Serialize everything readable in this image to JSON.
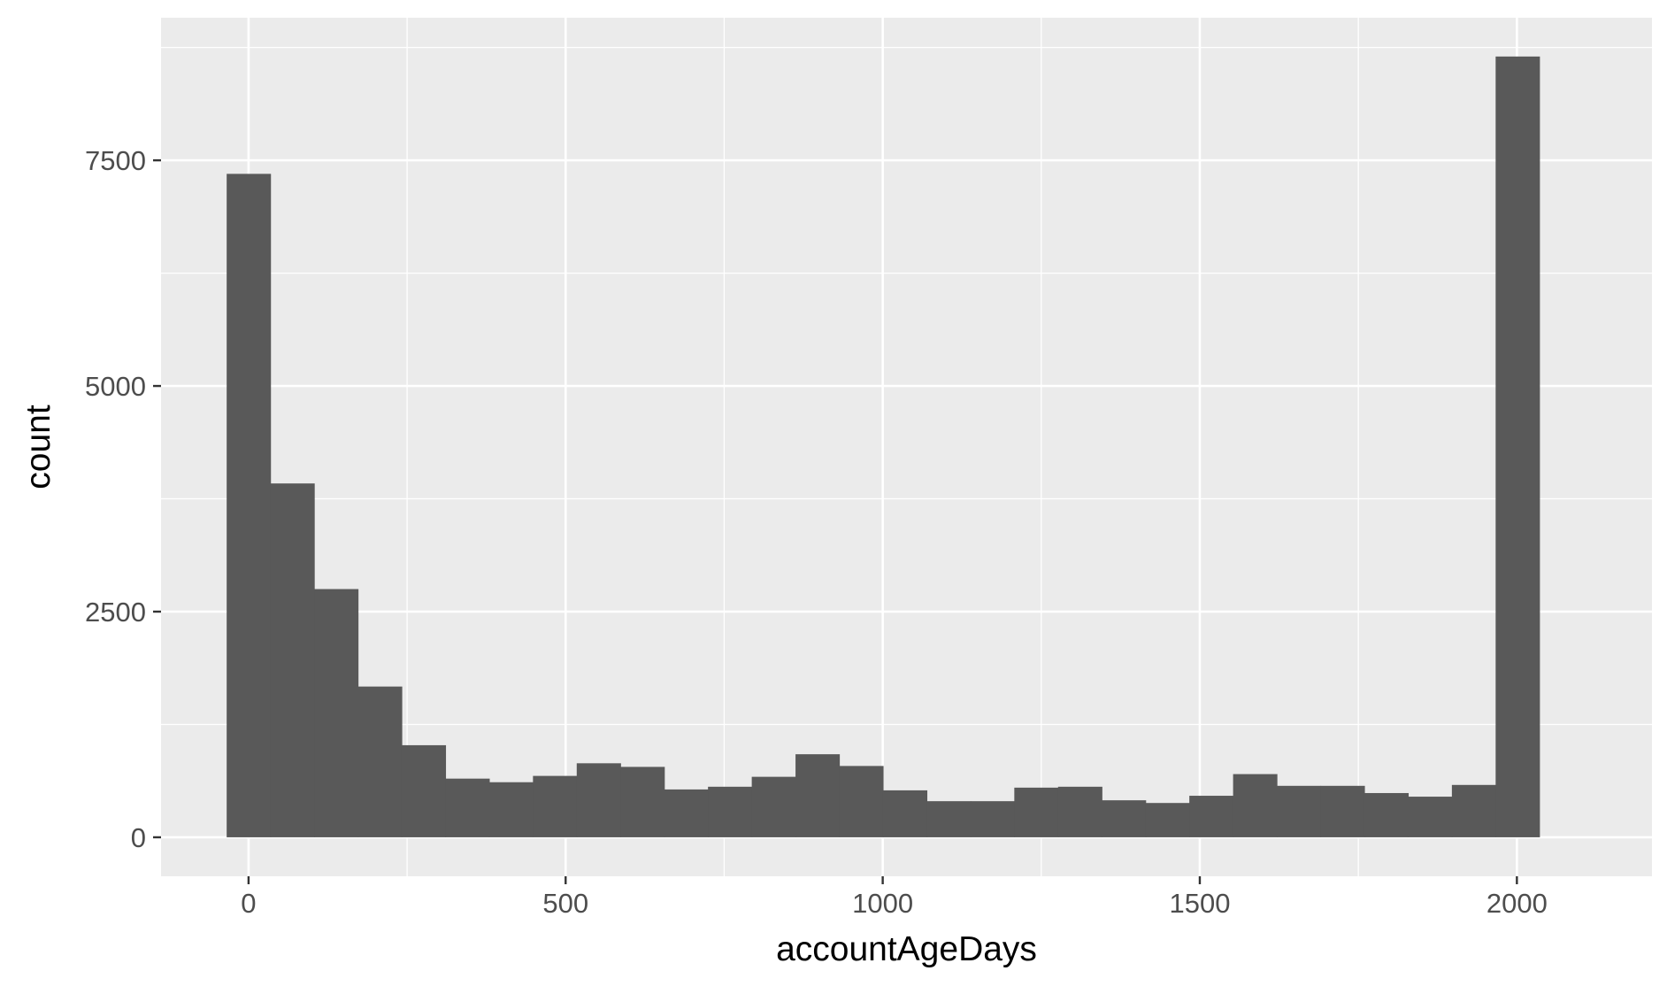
{
  "chart_data": {
    "type": "bar",
    "title": "",
    "xlabel": "accountAgeDays",
    "ylabel": "count",
    "bin_width": 69,
    "bins": [
      {
        "x_start": -34.5,
        "x_end": 34.5,
        "count": 7350
      },
      {
        "x_start": 34.5,
        "x_end": 103.5,
        "count": 3920
      },
      {
        "x_start": 103.5,
        "x_end": 172.5,
        "count": 2750
      },
      {
        "x_start": 172.5,
        "x_end": 241.5,
        "count": 1670
      },
      {
        "x_start": 241.5,
        "x_end": 310.5,
        "count": 1020
      },
      {
        "x_start": 310.5,
        "x_end": 379.5,
        "count": 650
      },
      {
        "x_start": 379.5,
        "x_end": 448.5,
        "count": 610
      },
      {
        "x_start": 448.5,
        "x_end": 517.5,
        "count": 680
      },
      {
        "x_start": 517.5,
        "x_end": 586.5,
        "count": 820
      },
      {
        "x_start": 586.5,
        "x_end": 655.5,
        "count": 780
      },
      {
        "x_start": 655.5,
        "x_end": 724.5,
        "count": 530
      },
      {
        "x_start": 724.5,
        "x_end": 793.5,
        "count": 560
      },
      {
        "x_start": 793.5,
        "x_end": 862.5,
        "count": 670
      },
      {
        "x_start": 862.5,
        "x_end": 931.5,
        "count": 920
      },
      {
        "x_start": 931.5,
        "x_end": 1000.5,
        "count": 790
      },
      {
        "x_start": 1000.5,
        "x_end": 1069.5,
        "count": 520
      },
      {
        "x_start": 1069.5,
        "x_end": 1138.5,
        "count": 400
      },
      {
        "x_start": 1138.5,
        "x_end": 1207.5,
        "count": 400
      },
      {
        "x_start": 1207.5,
        "x_end": 1276.5,
        "count": 550
      },
      {
        "x_start": 1276.5,
        "x_end": 1345.5,
        "count": 560
      },
      {
        "x_start": 1345.5,
        "x_end": 1414.5,
        "count": 410
      },
      {
        "x_start": 1414.5,
        "x_end": 1483.5,
        "count": 380
      },
      {
        "x_start": 1483.5,
        "x_end": 1552.5,
        "count": 460
      },
      {
        "x_start": 1552.5,
        "x_end": 1621.5,
        "count": 700
      },
      {
        "x_start": 1621.5,
        "x_end": 1690.5,
        "count": 570
      },
      {
        "x_start": 1690.5,
        "x_end": 1759.5,
        "count": 570
      },
      {
        "x_start": 1759.5,
        "x_end": 1828.5,
        "count": 490
      },
      {
        "x_start": 1828.5,
        "x_end": 1897.5,
        "count": 450
      },
      {
        "x_start": 1897.5,
        "x_end": 1966.5,
        "count": 580
      },
      {
        "x_start": 1966.5,
        "x_end": 2035.5,
        "count": 8650
      }
    ],
    "xlim": [
      -138,
      2213
    ],
    "ylim": [
      -432,
      9080
    ],
    "x_ticks": [
      0,
      500,
      1000,
      1500,
      2000
    ],
    "x_tick_labels": [
      "0",
      "500",
      "1000",
      "1500",
      "2000"
    ],
    "y_ticks": [
      0,
      2500,
      5000,
      7500
    ],
    "y_tick_labels": [
      "0",
      "2500",
      "5000",
      "7500"
    ],
    "grid": true,
    "legend": "none",
    "colors": {
      "panel_background": "#EBEBEB",
      "grid_major": "#FFFFFF",
      "grid_minor": "#F7F7F7",
      "bar_fill": "#595959",
      "tick_label": "#4D4D4D",
      "axis_title": "#000000",
      "tick_mark": "#333333"
    }
  }
}
